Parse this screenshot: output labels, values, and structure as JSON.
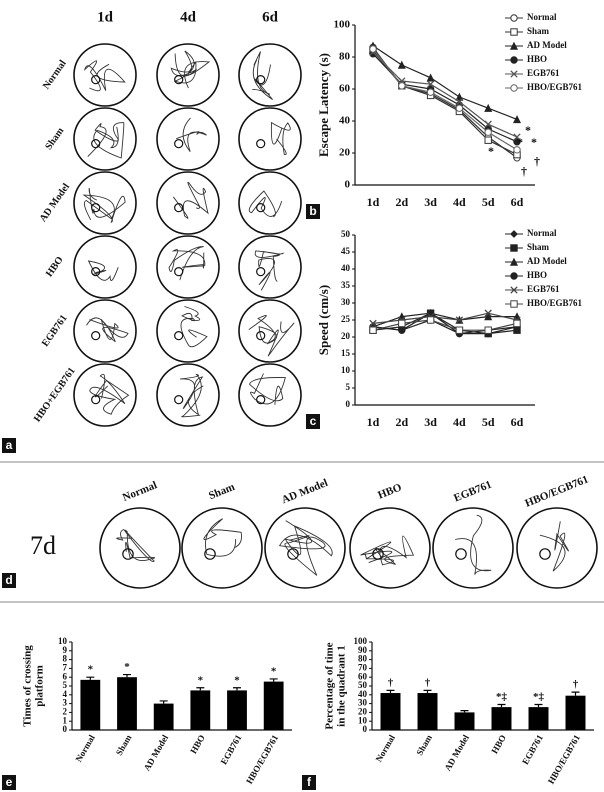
{
  "panel_labels": [
    "a",
    "b",
    "c",
    "d",
    "e",
    "f"
  ],
  "panel_a": {
    "columns": [
      "1d",
      "4d",
      "6d"
    ],
    "rows": [
      "Normal",
      "Sham",
      "AD Model",
      "HBO",
      "EGB761",
      "HBO+EGB761"
    ]
  },
  "panel_d": {
    "day": "7d",
    "groups": [
      "Normal",
      "Sham",
      "AD Model",
      "HBO",
      "EGB761",
      "HBO/EGB761"
    ]
  },
  "chart_data": [
    {
      "type": "line",
      "ylabel": "Escape Latency (s)",
      "categories": [
        "1d",
        "2d",
        "3d",
        "4d",
        "5d",
        "6d"
      ],
      "ylim": [
        0,
        100
      ],
      "yticks": [
        0,
        20,
        40,
        60,
        80,
        100
      ],
      "series": [
        {
          "name": "Normal",
          "color": "#333",
          "marker": "circle-open",
          "values": [
            86,
            62,
            57,
            47,
            30,
            17
          ]
        },
        {
          "name": "Sham",
          "color": "#333",
          "marker": "square-open",
          "values": [
            84,
            62,
            56,
            46,
            28,
            19
          ]
        },
        {
          "name": "AD Model",
          "color": "#222",
          "marker": "triangle",
          "values": [
            87,
            75,
            67,
            55,
            48,
            41
          ]
        },
        {
          "name": "HBO",
          "color": "#222",
          "marker": "circle",
          "values": [
            82,
            63,
            60,
            50,
            35,
            27
          ]
        },
        {
          "name": "EGB761",
          "color": "#555",
          "marker": "cross",
          "values": [
            83,
            65,
            63,
            52,
            38,
            30
          ]
        },
        {
          "name": "HBO/EGB761",
          "color": "#666",
          "marker": "circle-open",
          "values": [
            85,
            62,
            58,
            48,
            33,
            22
          ]
        }
      ],
      "annotations": [
        "*",
        "*",
        "*",
        "*",
        "†",
        "†"
      ]
    },
    {
      "type": "line",
      "ylabel": "Speed (cm/s)",
      "categories": [
        "1d",
        "2d",
        "3d",
        "4d",
        "5d",
        "6d"
      ],
      "ylim": [
        0,
        50
      ],
      "yticks": [
        0,
        5,
        10,
        15,
        20,
        25,
        30,
        35,
        40,
        45,
        50
      ],
      "series": [
        {
          "name": "Normal",
          "color": "#222",
          "marker": "diamond",
          "values": [
            23,
            22,
            27,
            21,
            22,
            23
          ]
        },
        {
          "name": "Sham",
          "color": "#222",
          "marker": "square",
          "values": [
            22,
            23,
            27,
            22,
            21,
            22
          ]
        },
        {
          "name": "AD Model",
          "color": "#222",
          "marker": "triangle",
          "values": [
            23,
            26,
            27,
            25,
            26,
            26
          ]
        },
        {
          "name": "HBO",
          "color": "#222",
          "marker": "circle",
          "values": [
            23,
            22,
            25,
            21,
            21,
            23
          ]
        },
        {
          "name": "EGB761",
          "color": "#444",
          "marker": "cross",
          "values": [
            24,
            25,
            26,
            25,
            27,
            25
          ]
        },
        {
          "name": "HBO/EGB761",
          "color": "#444",
          "marker": "square-open",
          "values": [
            22,
            24,
            25,
            22,
            22,
            24
          ]
        }
      ]
    },
    {
      "type": "bar",
      "ylabel": [
        "Times of crossing",
        "platform"
      ],
      "categories": [
        "Normal",
        "Sham",
        "AD Model",
        "HBO",
        "EGB761",
        "HBO/EGB761"
      ],
      "values": [
        5.7,
        6.0,
        3.0,
        4.5,
        4.5,
        5.5
      ],
      "errors": [
        0.3,
        0.3,
        0.3,
        0.3,
        0.3,
        0.3
      ],
      "color": "#000",
      "ylim": [
        0,
        10
      ],
      "yticks": [
        0,
        1,
        2,
        3,
        4,
        5,
        6,
        7,
        8,
        9,
        10
      ],
      "annotations": [
        "*",
        "*",
        null,
        "*",
        "*",
        "*"
      ]
    },
    {
      "type": "bar",
      "ylabel": [
        "Percentage of time",
        "in the quadrant 1"
      ],
      "categories": [
        "Normal",
        "Sham",
        "AD Model",
        "HBO",
        "EGB761",
        "HBO/EGB761"
      ],
      "values": [
        42,
        42,
        20,
        26,
        26,
        39
      ],
      "errors": [
        3,
        3,
        2,
        3,
        3,
        4
      ],
      "color": "#000",
      "ylim": [
        0,
        100
      ],
      "yticks": [
        0,
        10,
        20,
        30,
        40,
        50,
        60,
        70,
        80,
        90,
        100
      ],
      "annotations": [
        "†",
        "†",
        null,
        "*‡",
        "*‡",
        "†"
      ]
    }
  ]
}
